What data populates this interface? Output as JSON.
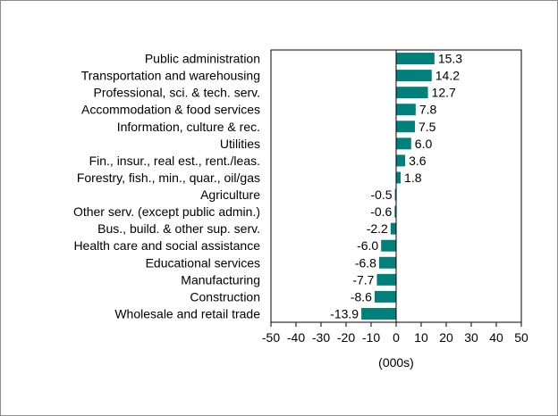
{
  "chart_data": {
    "type": "bar",
    "orientation": "horizontal",
    "categories": [
      "Public administration",
      "Transportation and warehousing",
      "Professional, sci. & tech. serv.",
      "Accommodation & food services",
      "Information, culture & rec.",
      "Utilities",
      "Fin., insur., real est., rent./leas.",
      "Forestry, fish., min., quar., oil/gas",
      "Agriculture",
      "Other serv. (except public admin.)",
      "Bus., build. & other sup. serv.",
      "Health care and social assistance",
      "Educational services",
      "Manufacturing",
      "Construction",
      "Wholesale and retail trade"
    ],
    "values": [
      15.3,
      14.2,
      12.7,
      7.8,
      7.5,
      6.0,
      3.6,
      1.8,
      -0.5,
      -0.6,
      -2.2,
      -6.0,
      -6.8,
      -7.7,
      -8.6,
      -13.9
    ],
    "value_labels": [
      "15.3",
      "14.2",
      "12.7",
      "7.8",
      "7.5",
      "6.0",
      "3.6",
      "1.8",
      "-0.5",
      "-0.6",
      "-2.2",
      "-6.0",
      "-6.8",
      "-7.7",
      "-8.6",
      "-13.9"
    ],
    "xlabel": "(000s)",
    "xlim": [
      -50,
      50
    ],
    "xticks": [
      -50,
      -40,
      -30,
      -20,
      -10,
      0,
      10,
      20,
      30,
      40,
      50
    ],
    "xtick_labels": [
      "-50",
      "-40",
      "-30",
      "-20",
      "-10",
      "0",
      "10",
      "20",
      "30",
      "40",
      "50"
    ],
    "bar_color": "#00807a",
    "axis_color": "#000000",
    "grid": false,
    "legend": "none"
  }
}
